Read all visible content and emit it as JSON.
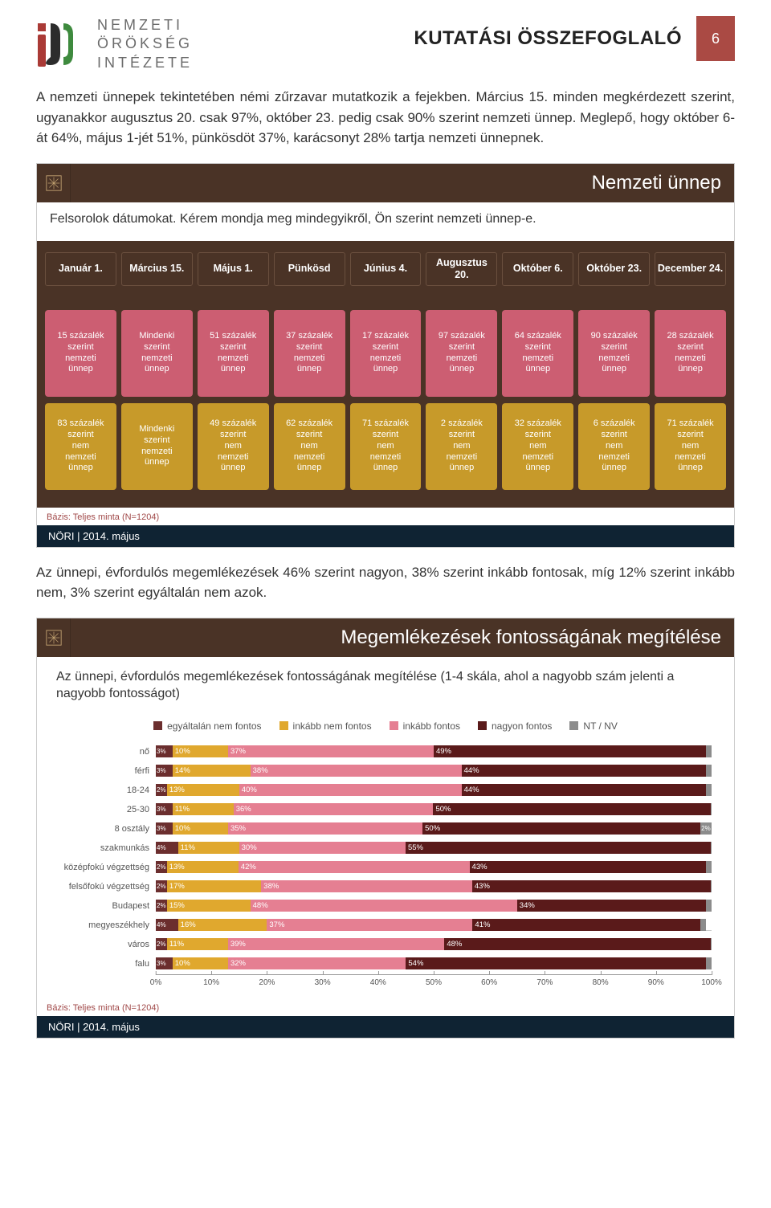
{
  "header": {
    "logo_lines": [
      "NEMZETI",
      "ÖRÖKSÉG",
      "INTÉZETE"
    ],
    "title": "KUTATÁSI ÖSSZEFOGLALÓ",
    "page_number": "6"
  },
  "paragraph1": "A nemzeti ünnepek tekintetében némi zűrzavar mutatkozik a fejekben. Március 15. minden megkérdezett szerint, ugyanakkor augusztus 20. csak 97%, október 23. pedig csak 90% szerint nemzeti ünnep. Meglepő, hogy október 6-át 64%, május 1-jét 51%, pünkösdöt 37%, karácsonyt 28% tartja nemzeti ünnepnek.",
  "panel1": {
    "title": "Nemzeti ünnep",
    "subtitle": "Felsorolok dátumokat. Kérem mondja meg mindegyikről, Ön szerint nemzeti ünnep-e.",
    "columns": [
      {
        "head": "Január 1.",
        "yes": "15 százalék szerint nemzeti ünnep",
        "no": "83 százalék szerint nem nemzeti ünnep"
      },
      {
        "head": "Március 15.",
        "yes": "Mindenki szerint nemzeti ünnep",
        "no": "Mindenki szerint nemzeti ünnep"
      },
      {
        "head": "Május 1.",
        "yes": "51 százalék szerint nemzeti ünnep",
        "no": "49 százalék szerint nem nemzeti ünnep"
      },
      {
        "head": "Pünkösd",
        "yes": "37 százalék szerint nemzeti ünnep",
        "no": "62 százalék szerint nem nemzeti ünnep"
      },
      {
        "head": "Június 4.",
        "yes": "17 százalék szerint nemzeti ünnep",
        "no": "71 százalék szerint nem nemzeti ünnep"
      },
      {
        "head": "Augusztus 20.",
        "yes": "97 százalék szerint nemzeti ünnep",
        "no": "2 százalék szerint nem nemzeti ünnep"
      },
      {
        "head": "Október 6.",
        "yes": "64 százalék szerint nemzeti ünnep",
        "no": "32 százalék szerint nem nemzeti ünnep"
      },
      {
        "head": "Október 23.",
        "yes": "90 százalék szerint nemzeti ünnep",
        "no": "6 százalék szerint nem nemzeti ünnep"
      },
      {
        "head": "December 24.",
        "yes": "28 százalék szerint nemzeti ünnep",
        "no": "71 százalék szerint nem nemzeti ünnep"
      }
    ],
    "colors": {
      "header_bg": "#4a3326",
      "yes_bg": "#cc5e72",
      "no_bg": "#c79a2a"
    },
    "footnote": "Bázis: Teljes minta (N=1204)",
    "footer": "NÖRI | 2014. május"
  },
  "paragraph2": "Az ünnepi, évfordulós megemlékezések 46% szerint nagyon, 38% szerint inkább fontosak, míg 12% szerint inkább nem, 3% szerint egyáltalán nem azok.",
  "panel2": {
    "title": "Megemlékezések fontosságának megítélése",
    "subtitle": "Az ünnepi, évfordulós megemlékezések fontosságának megítélése (1-4 skála, ahol a nagyobb szám jelenti a nagyobb fontosságot)",
    "legend": [
      {
        "label": "egyáltalán nem fontos",
        "color": "#6b2e2e"
      },
      {
        "label": "inkább nem fontos",
        "color": "#e0a82e"
      },
      {
        "label": "inkább fontos",
        "color": "#e57f92"
      },
      {
        "label": "nagyon fontos",
        "color": "#5a1a1a"
      },
      {
        "label": "NT / NV",
        "color": "#8c8c8c"
      }
    ],
    "rows": [
      {
        "label": "nő",
        "vals": [
          3,
          10,
          37,
          49,
          1
        ]
      },
      {
        "label": "férfi",
        "vals": [
          3,
          14,
          38,
          44,
          1
        ]
      },
      {
        "label": "18-24",
        "vals": [
          2,
          13,
          40,
          44,
          1
        ]
      },
      {
        "label": "25-30",
        "vals": [
          3,
          11,
          36,
          50,
          0
        ]
      },
      {
        "label": "8 osztály",
        "vals": [
          3,
          10,
          35,
          50,
          2
        ]
      },
      {
        "label": "szakmunkás",
        "vals": [
          4,
          11,
          30,
          55,
          0
        ]
      },
      {
        "label": "középfokú végzettség",
        "vals": [
          2,
          13,
          42,
          43,
          1
        ]
      },
      {
        "label": "felsőfokú végzettség",
        "vals": [
          2,
          17,
          38,
          43,
          0
        ]
      },
      {
        "label": "Budapest",
        "vals": [
          2,
          15,
          48,
          34,
          1
        ]
      },
      {
        "label": "megyeszékhely",
        "vals": [
          4,
          16,
          37,
          41,
          1
        ]
      },
      {
        "label": "város",
        "vals": [
          2,
          11,
          39,
          48,
          0
        ]
      },
      {
        "label": "falu",
        "vals": [
          3,
          10,
          32,
          54,
          1
        ]
      }
    ],
    "x_ticks": [
      0,
      10,
      20,
      30,
      40,
      50,
      60,
      70,
      80,
      90,
      100
    ],
    "footnote": "Bázis: Teljes minta (N=1204)",
    "footer": "NÖRI | 2014. május"
  }
}
